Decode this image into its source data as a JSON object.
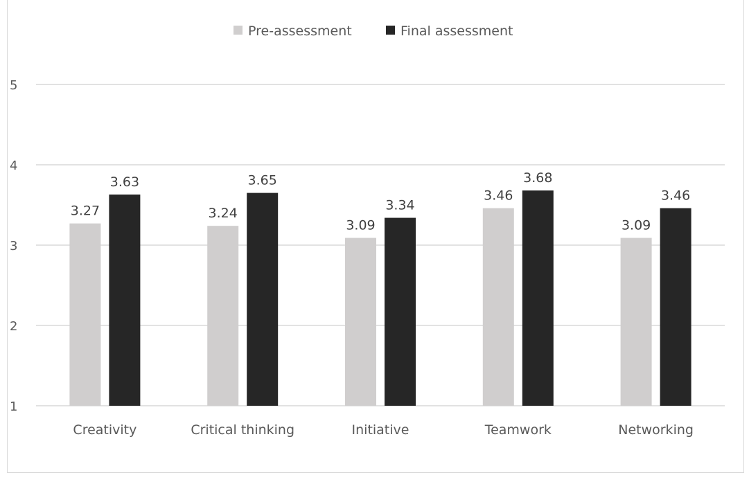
{
  "chart_data": {
    "type": "bar",
    "title": "",
    "xlabel": "",
    "ylabel": "",
    "categories": [
      "Creativity",
      "Critical thinking",
      "Initiative",
      "Teamwork",
      "Networking"
    ],
    "series": [
      {
        "name": "Pre-assessment",
        "color": "#d0cece",
        "values": [
          3.27,
          3.24,
          3.09,
          3.46,
          3.09
        ],
        "labels": [
          "3.27",
          "3.24",
          "3.09",
          "3.46",
          "3.09"
        ]
      },
      {
        "name": "Final assessment",
        "color": "#262626",
        "values": [
          3.63,
          3.65,
          3.34,
          3.68,
          3.46
        ],
        "labels": [
          "3.63",
          "3.65",
          "3.34",
          "3.68",
          "3.46"
        ]
      }
    ],
    "ylim": [
      1,
      5
    ],
    "yticks": [
      "1",
      "2",
      "3",
      "4",
      "5"
    ],
    "grid": true,
    "legend_position": "top-center"
  }
}
